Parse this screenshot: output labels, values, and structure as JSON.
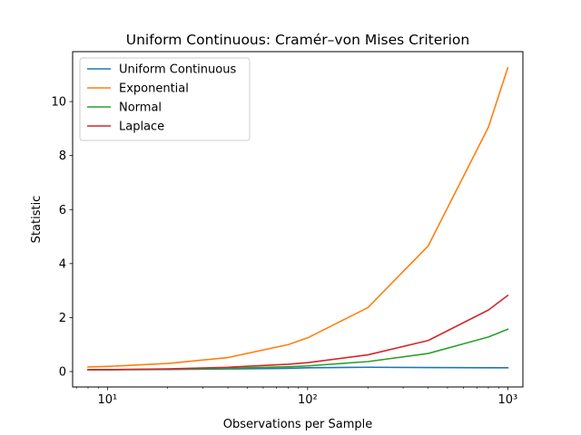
{
  "chart_data": {
    "type": "line",
    "title": "Uniform Continuous: Cramér–von Mises Criterion",
    "xlabel": "Observations per Sample",
    "ylabel": "Statistic",
    "xscale": "log",
    "xlim": [
      6.7,
      1190
    ],
    "ylim": [
      -0.57,
      11.85
    ],
    "x": [
      8,
      10,
      20,
      40,
      80,
      100,
      200,
      400,
      800,
      1000
    ],
    "x_ticks": [
      {
        "value": 10,
        "label": "10¹"
      },
      {
        "value": 100,
        "label": "10²"
      },
      {
        "value": 1000,
        "label": "10³"
      }
    ],
    "y_ticks": [
      {
        "value": 0,
        "label": "0"
      },
      {
        "value": 2,
        "label": "2"
      },
      {
        "value": 4,
        "label": "4"
      },
      {
        "value": 6,
        "label": "6"
      },
      {
        "value": 8,
        "label": "8"
      },
      {
        "value": 10,
        "label": "10"
      }
    ],
    "grid": false,
    "legend_position": "top-left",
    "series": [
      {
        "name": "Uniform Continuous",
        "color": "#1f77b4",
        "values": [
          0.07,
          0.07,
          0.08,
          0.1,
          0.12,
          0.14,
          0.16,
          0.15,
          0.14,
          0.14
        ]
      },
      {
        "name": "Exponential",
        "color": "#ff7f0e",
        "values": [
          0.17,
          0.19,
          0.3,
          0.52,
          1.0,
          1.25,
          2.37,
          4.65,
          9.05,
          11.25
        ]
      },
      {
        "name": "Normal",
        "color": "#2ca02c",
        "values": [
          0.07,
          0.07,
          0.09,
          0.12,
          0.18,
          0.21,
          0.37,
          0.67,
          1.28,
          1.57
        ]
      },
      {
        "name": "Laplace",
        "color": "#d62728",
        "values": [
          0.07,
          0.07,
          0.1,
          0.16,
          0.27,
          0.33,
          0.62,
          1.15,
          2.28,
          2.82
        ]
      }
    ]
  }
}
